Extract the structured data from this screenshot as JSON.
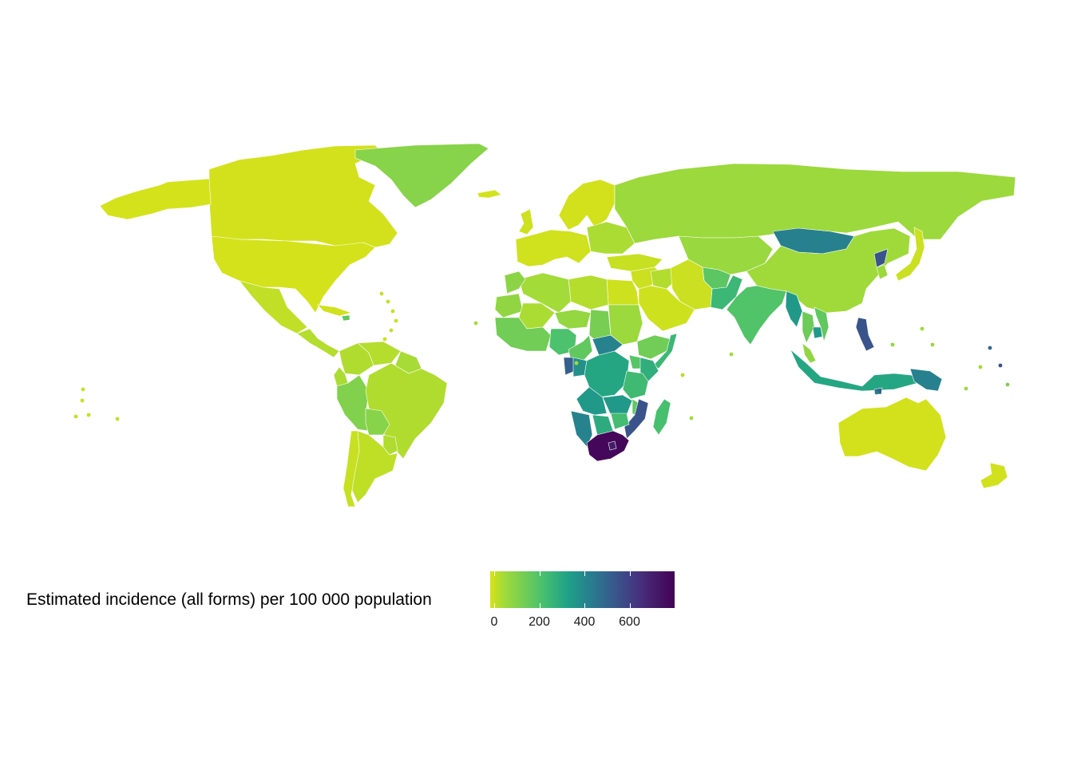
{
  "chart_data": {
    "type": "choropleth",
    "legend_title": "Estimated incidence (all forms) per 100 000 population",
    "scale": {
      "palette": "viridis (reversed)",
      "low_color": "#d7e219",
      "high_color": "#440154",
      "range": [
        0,
        800
      ],
      "ticks": [
        "0",
        "200",
        "400",
        "600"
      ]
    },
    "regions": [
      {
        "name": "Canada",
        "value": 5
      },
      {
        "name": "United States",
        "value": 3
      },
      {
        "name": "Alaska",
        "value": 3
      },
      {
        "name": "Greenland",
        "value": 110
      },
      {
        "name": "Mexico",
        "value": 25
      },
      {
        "name": "Central America",
        "value": 40
      },
      {
        "name": "Cuba",
        "value": 7
      },
      {
        "name": "Haiti",
        "value": 180
      },
      {
        "name": "Colombia",
        "value": 45
      },
      {
        "name": "Venezuela",
        "value": 40
      },
      {
        "name": "Guianas",
        "value": 55
      },
      {
        "name": "Ecuador",
        "value": 50
      },
      {
        "name": "Peru",
        "value": 120
      },
      {
        "name": "Brazil",
        "value": 45
      },
      {
        "name": "Bolivia",
        "value": 110
      },
      {
        "name": "Paraguay",
        "value": 45
      },
      {
        "name": "Argentina",
        "value": 27
      },
      {
        "name": "Chile",
        "value": 18
      },
      {
        "name": "Western Europe",
        "value": 8
      },
      {
        "name": "Eastern Europe",
        "value": 50
      },
      {
        "name": "Scandinavia",
        "value": 6
      },
      {
        "name": "Iceland",
        "value": 3
      },
      {
        "name": "United Kingdom",
        "value": 10
      },
      {
        "name": "Russia",
        "value": 70
      },
      {
        "name": "Turkey",
        "value": 18
      },
      {
        "name": "Central Asia",
        "value": 75
      },
      {
        "name": "Mongolia",
        "value": 430
      },
      {
        "name": "China",
        "value": 64
      },
      {
        "name": "Afghanistan",
        "value": 190
      },
      {
        "name": "Pakistan",
        "value": 260
      },
      {
        "name": "India",
        "value": 210
      },
      {
        "name": "Myanmar",
        "value": 360
      },
      {
        "name": "Thailand",
        "value": 160
      },
      {
        "name": "Cambodia",
        "value": 360
      },
      {
        "name": "Vietnam",
        "value": 180
      },
      {
        "name": "North Korea",
        "value": 550
      },
      {
        "name": "South Korea",
        "value": 70
      },
      {
        "name": "Japan",
        "value": 15
      },
      {
        "name": "Philippines",
        "value": 550
      },
      {
        "name": "Malaysia",
        "value": 90
      },
      {
        "name": "Indonesia",
        "value": 320
      },
      {
        "name": "Papua New Guinea",
        "value": 430
      },
      {
        "name": "Timor-Leste",
        "value": 500
      },
      {
        "name": "Australia",
        "value": 6
      },
      {
        "name": "New Zealand",
        "value": 7
      },
      {
        "name": "Middle East",
        "value": 15
      },
      {
        "name": "Saudi Arabia",
        "value": 10
      },
      {
        "name": "Iran",
        "value": 14
      },
      {
        "name": "Iraq",
        "value": 42
      },
      {
        "name": "Egypt",
        "value": 12
      },
      {
        "name": "Libya",
        "value": 40
      },
      {
        "name": "Algeria",
        "value": 60
      },
      {
        "name": "Morocco",
        "value": 100
      },
      {
        "name": "Mauritania",
        "value": 90
      },
      {
        "name": "Mali",
        "value": 50
      },
      {
        "name": "Niger",
        "value": 85
      },
      {
        "name": "Chad",
        "value": 140
      },
      {
        "name": "Sudan",
        "value": 70
      },
      {
        "name": "West Africa coast",
        "value": 150
      },
      {
        "name": "Nigeria",
        "value": 220
      },
      {
        "name": "Cameroon",
        "value": 180
      },
      {
        "name": "Central African Republic",
        "value": 420
      },
      {
        "name": "Ethiopia",
        "value": 150
      },
      {
        "name": "Somalia",
        "value": 260
      },
      {
        "name": "Gabon",
        "value": 520
      },
      {
        "name": "Congo",
        "value": 380
      },
      {
        "name": "DR Congo",
        "value": 320
      },
      {
        "name": "Uganda",
        "value": 200
      },
      {
        "name": "Kenya",
        "value": 290
      },
      {
        "name": "Tanzania",
        "value": 250
      },
      {
        "name": "Angola",
        "value": 360
      },
      {
        "name": "Zambia",
        "value": 360
      },
      {
        "name": "Malawi",
        "value": 180
      },
      {
        "name": "Mozambique",
        "value": 550
      },
      {
        "name": "Madagascar",
        "value": 230
      },
      {
        "name": "Namibia",
        "value": 420
      },
      {
        "name": "Botswana",
        "value": 300
      },
      {
        "name": "Zimbabwe",
        "value": 240
      },
      {
        "name": "South Africa",
        "value": 780
      },
      {
        "name": "Lesotho",
        "value": 720
      }
    ]
  }
}
